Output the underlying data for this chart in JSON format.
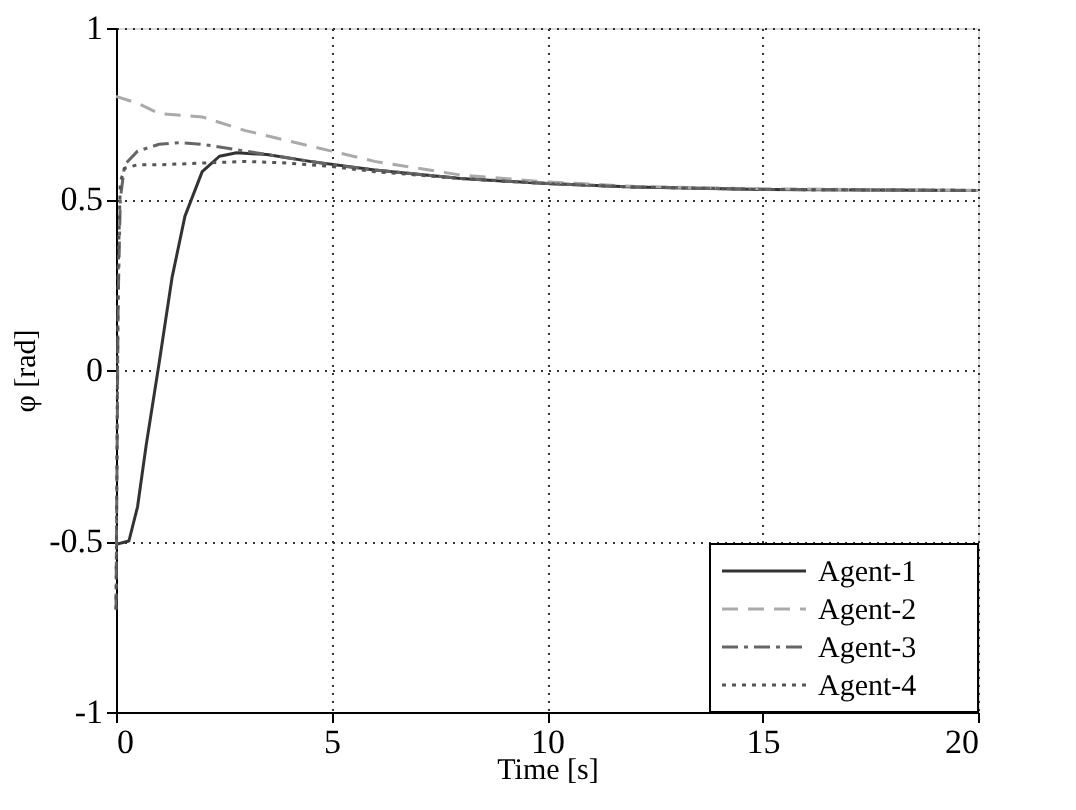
{
  "chart_data": {
    "type": "line",
    "xlabel": "Time [s]",
    "ylabel": "φ [rad]",
    "xlim": [
      0,
      20
    ],
    "xticks": [
      0,
      5,
      10,
      15,
      20
    ],
    "ylim": [
      -1,
      1
    ],
    "yticks": [
      -1,
      -0.5,
      0,
      0.5,
      1
    ],
    "grid": true,
    "legend": "bottom right",
    "marker": "none",
    "series": [
      {
        "name": "Agent-1",
        "color": "#333333",
        "line_style": "solid",
        "x": [
          0,
          0.3,
          0.5,
          0.7,
          1.0,
          1.3,
          1.6,
          2.0,
          2.4,
          2.8,
          3.5,
          4.5,
          6,
          8,
          10,
          12,
          15,
          20
        ],
        "values": [
          -0.51,
          -0.5,
          -0.4,
          -0.22,
          0.02,
          0.27,
          0.45,
          0.58,
          0.625,
          0.635,
          0.63,
          0.61,
          0.585,
          0.56,
          0.545,
          0.535,
          0.528,
          0.525
        ]
      },
      {
        "name": "Agent-2",
        "color": "#aaaaaa",
        "line_style": "dashed",
        "x": [
          0,
          0.5,
          1,
          2,
          3,
          4,
          5,
          6,
          8,
          10,
          12,
          15,
          20
        ],
        "values": [
          0.8,
          0.78,
          0.75,
          0.74,
          0.7,
          0.67,
          0.64,
          0.61,
          0.57,
          0.55,
          0.537,
          0.53,
          0.525
        ]
      },
      {
        "name": "Agent-3",
        "color": "#666666",
        "line_style": "dashdot",
        "x": [
          0,
          0.05,
          0.1,
          0.2,
          0.5,
          1,
          1.5,
          2,
          3,
          4,
          5,
          6,
          8,
          10,
          12,
          15,
          20
        ],
        "values": [
          -0.7,
          0.2,
          0.5,
          0.6,
          0.64,
          0.66,
          0.665,
          0.66,
          0.64,
          0.62,
          0.6,
          0.585,
          0.56,
          0.545,
          0.535,
          0.528,
          0.525
        ]
      },
      {
        "name": "Agent-4",
        "color": "#555555",
        "line_style": "dotted",
        "x": [
          0,
          0.05,
          0.1,
          0.2,
          0.5,
          1,
          2,
          3,
          4,
          5,
          6,
          8,
          10,
          12,
          15,
          20
        ],
        "values": [
          -0.7,
          0.3,
          0.55,
          0.59,
          0.6,
          0.6,
          0.605,
          0.61,
          0.605,
          0.595,
          0.58,
          0.56,
          0.545,
          0.535,
          0.528,
          0.525
        ]
      }
    ]
  }
}
